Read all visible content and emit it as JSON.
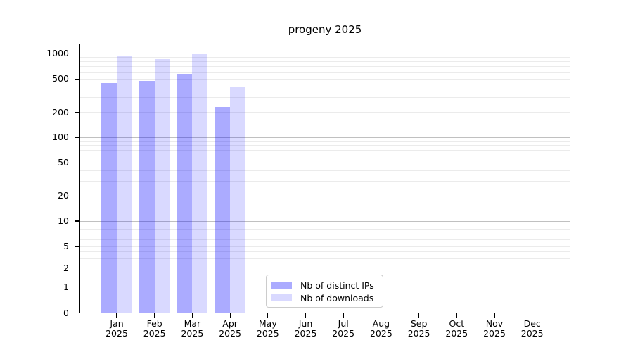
{
  "figure": {
    "title": "progeny 2025"
  },
  "legend": {
    "items": [
      {
        "label": "Nb of distinct IPs",
        "color": "rgba(0,0,255,0.33)",
        "solid_color": "#abaaff"
      },
      {
        "label": "Nb of downloads",
        "color": "rgba(0,0,255,0.15)",
        "solid_color": "#d9d9ff"
      }
    ]
  },
  "y_axis": {
    "tick_labels": [
      "0",
      "1",
      "2",
      "5",
      "10",
      "20",
      "50",
      "100",
      "200",
      "500",
      "1000"
    ]
  },
  "x_axis": {
    "months": [
      "Jan",
      "Feb",
      "Mar",
      "Apr",
      "May",
      "Jun",
      "Jul",
      "Aug",
      "Sep",
      "Oct",
      "Nov",
      "Dec"
    ],
    "year": "2025"
  },
  "chart_data": {
    "type": "bar",
    "title": "progeny 2025",
    "categories": [
      "Jan 2025",
      "Feb 2025",
      "Mar 2025",
      "Apr 2025",
      "May 2025",
      "Jun 2025",
      "Jul 2025",
      "Aug 2025",
      "Sep 2025",
      "Oct 2025",
      "Nov 2025",
      "Dec 2025"
    ],
    "series": [
      {
        "name": "Nb of distinct IPs",
        "color": "#abaaff",
        "values": [
          450,
          470,
          580,
          230,
          null,
          null,
          null,
          null,
          null,
          null,
          null,
          null
        ]
      },
      {
        "name": "Nb of downloads",
        "color": "#d9d9ff",
        "values": [
          960,
          860,
          1000,
          400,
          null,
          null,
          null,
          null,
          null,
          null,
          null,
          null
        ]
      }
    ],
    "xlabel": "",
    "ylabel": "",
    "yscale": "symlog",
    "yticks": [
      0,
      1,
      2,
      5,
      10,
      20,
      50,
      100,
      200,
      500,
      1000
    ],
    "ylim": [
      0,
      1070
    ],
    "grid": true,
    "gridline_major_values": [
      1,
      10,
      100,
      1000
    ],
    "legend_position": "inside lower center"
  }
}
